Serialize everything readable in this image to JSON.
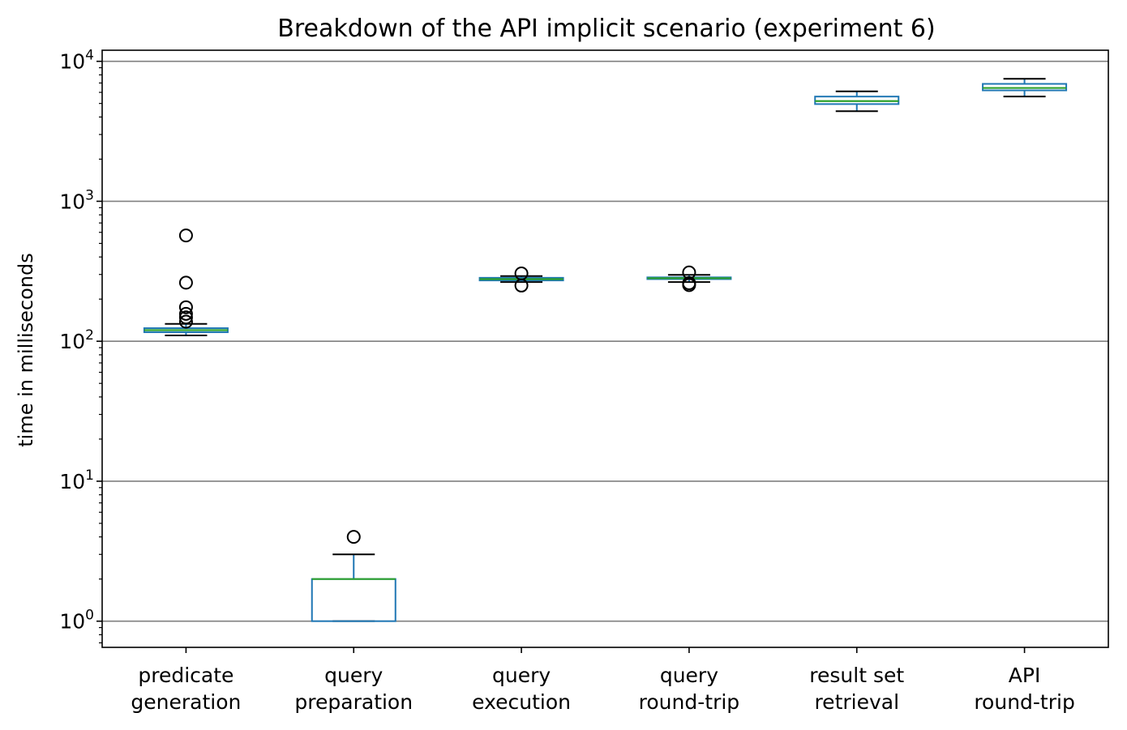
{
  "chart_data": {
    "type": "box",
    "title": "Breakdown of the API implicit scenario (experiment 6)",
    "xlabel": "",
    "ylabel": "time in milliseconds",
    "yscale": "log",
    "ylim": [
      0.65,
      12000
    ],
    "y_ticks": [
      {
        "value": 1,
        "base": "10",
        "exp": "0"
      },
      {
        "value": 10,
        "base": "10",
        "exp": "1"
      },
      {
        "value": 100,
        "base": "10",
        "exp": "2"
      },
      {
        "value": 1000,
        "base": "10",
        "exp": "3"
      },
      {
        "value": 10000,
        "base": "10",
        "exp": "4"
      }
    ],
    "grid": "y-major",
    "categories": [
      {
        "line1": "predicate",
        "line2": "generation"
      },
      {
        "line1": "query",
        "line2": "preparation"
      },
      {
        "line1": "query",
        "line2": "execution"
      },
      {
        "line1": "query",
        "line2": "round-trip"
      },
      {
        "line1": "result set",
        "line2": "retrieval"
      },
      {
        "line1": "API",
        "line2": "round-trip"
      }
    ],
    "boxes": [
      {
        "whisker_low": 110,
        "q1": 116,
        "median": 120,
        "q3": 124,
        "whisker_high": 133,
        "outliers": [
          138,
          148,
          157,
          175,
          262,
          570
        ]
      },
      {
        "whisker_low": 1,
        "q1": 1,
        "median": 2,
        "q3": 2,
        "whisker_high": 3,
        "outliers": [
          4
        ]
      },
      {
        "whisker_low": 265,
        "q1": 272,
        "median": 278,
        "q3": 284,
        "whisker_high": 292,
        "outliers": [
          250,
          305
        ]
      },
      {
        "whisker_low": 265,
        "q1": 278,
        "median": 282,
        "q3": 286,
        "whisker_high": 298,
        "outliers": [
          252,
          260,
          310
        ]
      },
      {
        "whisker_low": 4400,
        "q1": 4950,
        "median": 5200,
        "q3": 5600,
        "whisker_high": 6100,
        "outliers": []
      },
      {
        "whisker_low": 5600,
        "q1": 6200,
        "median": 6450,
        "q3": 6900,
        "whisker_high": 7500,
        "outliers": []
      }
    ],
    "colors": {
      "box": "#1f77b4",
      "median": "#2ca02c",
      "whisker": "#1f77b4",
      "cap": "#000000",
      "outlier": "#000000",
      "grid": "#808080",
      "axes": "#000000"
    }
  }
}
